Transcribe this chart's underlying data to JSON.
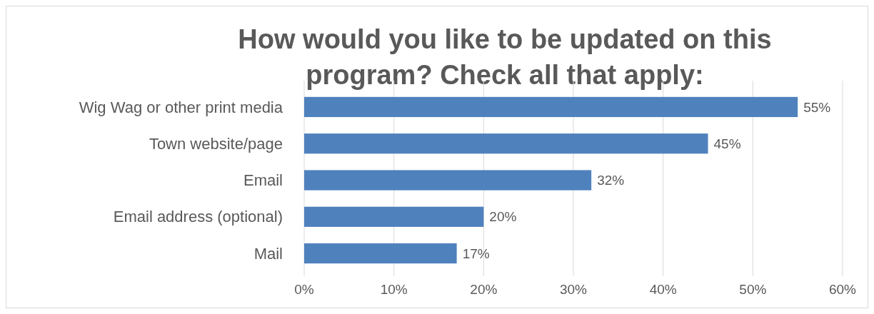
{
  "chart_data": {
    "type": "bar",
    "orientation": "horizontal",
    "title": "How would you like to be updated on this program? Check all that apply:",
    "categories": [
      "Wig Wag or other print media",
      "Town website/page",
      "Email",
      "Email address (optional)",
      "Mail"
    ],
    "values": [
      55,
      45,
      32,
      20,
      17
    ],
    "value_labels": [
      "55%",
      "45%",
      "32%",
      "20%",
      "17%"
    ],
    "color": "#4f81bd",
    "xlim": [
      0,
      60
    ],
    "xticks": [
      {
        "value": 0,
        "label": "0%"
      },
      {
        "value": 10,
        "label": "10%"
      },
      {
        "value": 20,
        "label": "20%"
      },
      {
        "value": 30,
        "label": "30%"
      },
      {
        "value": 40,
        "label": "40%"
      },
      {
        "value": 50,
        "label": "50%"
      },
      {
        "value": 60,
        "label": "60%"
      }
    ],
    "grid": "x"
  }
}
